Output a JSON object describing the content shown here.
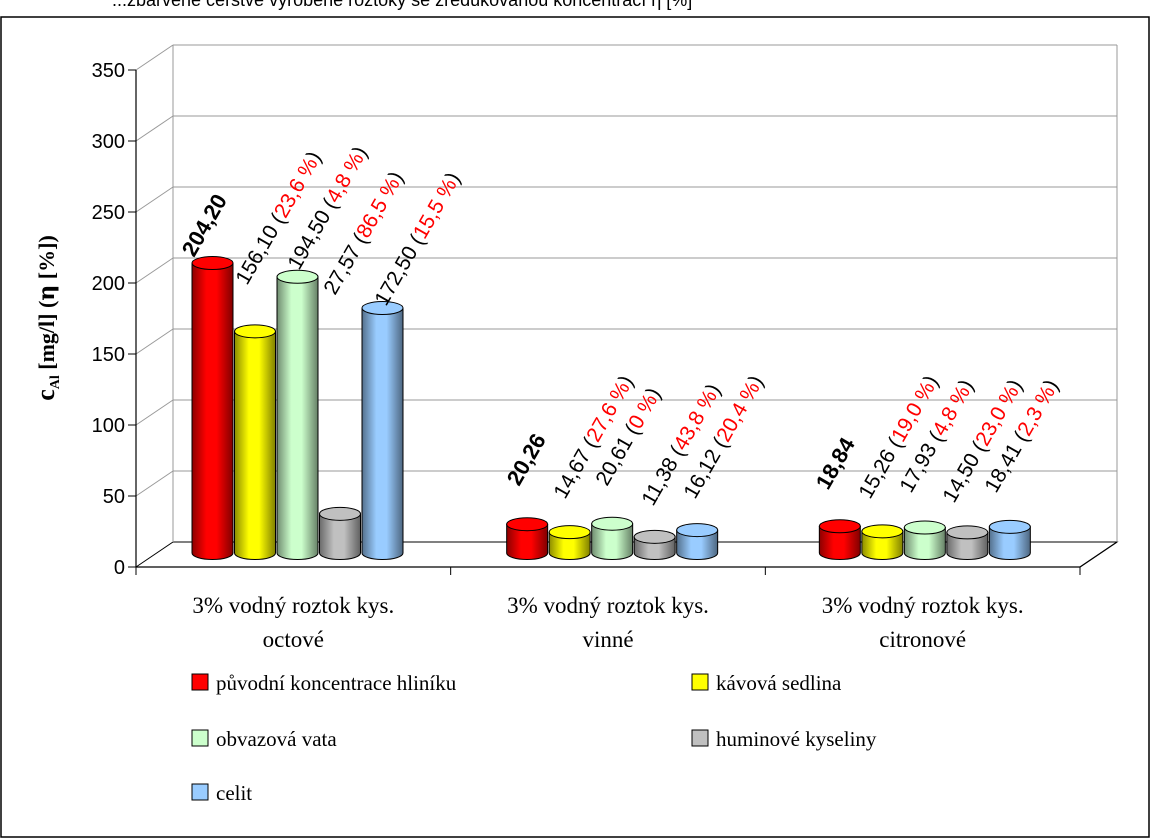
{
  "caption": "...zbarvené čerstvě vyrobené roztoky se zredukovanou koncentrací η [%]",
  "chart_data": {
    "type": "bar",
    "style": "3d-cylinder",
    "ylabel": {
      "main": "c",
      "sub": "Al",
      "rest": " [mg/l] (",
      "eta": "η",
      "tail": " [%])"
    },
    "ylim": [
      0,
      350
    ],
    "yticks": [
      "0",
      "50",
      "100",
      "150",
      "200",
      "250",
      "300",
      "350"
    ],
    "grid": true,
    "legend_position": "bottom",
    "categories": [
      "3% vodný roztok kys. octové",
      "3% vodný roztok kys. vinné",
      "3% vodný roztok kys. citronové"
    ],
    "series": [
      {
        "name": "původní koncentrace hliníku",
        "color": "#ff0000",
        "values": [
          204.2,
          20.26,
          18.84
        ],
        "labels": [
          {
            "value": "204,20",
            "pct": ""
          },
          {
            "value": "20,26",
            "pct": ""
          },
          {
            "value": "18,84",
            "pct": ""
          }
        ]
      },
      {
        "name": "kávová sedlina",
        "color": "#ffff00",
        "values": [
          156.1,
          14.67,
          15.26
        ],
        "labels": [
          {
            "value": "156,10",
            "pct": "23,6 %"
          },
          {
            "value": "14,67",
            "pct": "27,6 %"
          },
          {
            "value": "15,26",
            "pct": "19,0 %"
          }
        ]
      },
      {
        "name": "obvazová vata",
        "color": "#ccffcc",
        "values": [
          194.5,
          20.61,
          17.93
        ],
        "labels": [
          {
            "value": "194,50",
            "pct": "4,8 %"
          },
          {
            "value": "20,61",
            "pct": "0 %"
          },
          {
            "value": "17,93",
            "pct": "4,8 %"
          }
        ]
      },
      {
        "name": "huminové kyseliny",
        "color": "#c0c0c0",
        "values": [
          27.57,
          11.38,
          14.5
        ],
        "labels": [
          {
            "value": "27,57",
            "pct": "86,5 %"
          },
          {
            "value": "11,38",
            "pct": "43,8 %"
          },
          {
            "value": "14,50",
            "pct": "23,0 %"
          }
        ]
      },
      {
        "name": "celit",
        "color": "#99ccff",
        "values": [
          172.5,
          16.12,
          18.41
        ],
        "labels": [
          {
            "value": "172,50",
            "pct": "15,5 %"
          },
          {
            "value": "16,12",
            "pct": "20,4 %"
          },
          {
            "value": "18,41",
            "pct": "2,3 %"
          }
        ]
      }
    ],
    "label_colors": {
      "text": "#000000",
      "percent": "#ff0000"
    }
  }
}
